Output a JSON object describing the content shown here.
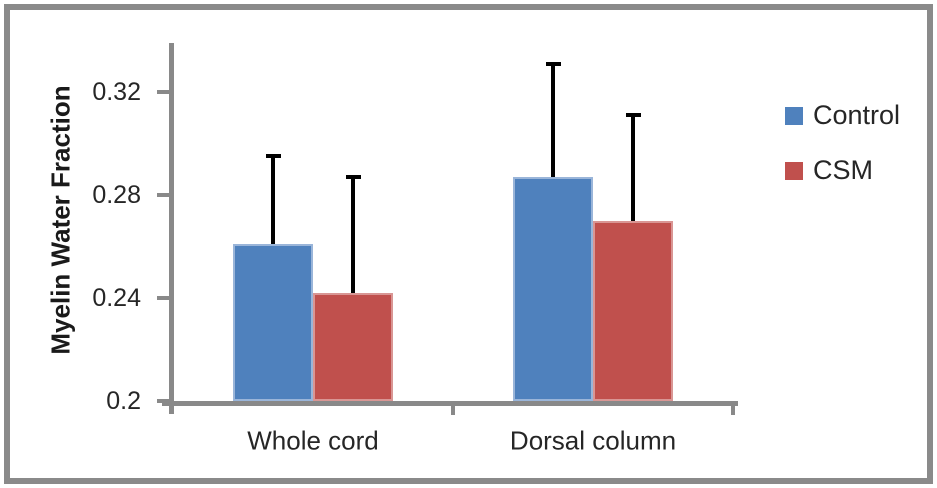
{
  "chart_data": {
    "type": "bar",
    "title": "",
    "xlabel": "",
    "ylabel": "Myelin Water Fraction",
    "categories": [
      "Whole cord",
      "Dorsal column"
    ],
    "series": [
      {
        "name": "Control",
        "color": "#4f81bd",
        "edge_color": "#9ab5d9",
        "values": [
          0.261,
          0.287
        ],
        "error_up": [
          0.034,
          0.044
        ]
      },
      {
        "name": "CSM",
        "color": "#c0504d",
        "edge_color": "#d99694",
        "values": [
          0.242,
          0.27
        ],
        "error_up": [
          0.045,
          0.041
        ]
      }
    ],
    "ylim": [
      0.2,
      0.34
    ],
    "yticks": [
      {
        "value": 0.32,
        "label": "0.32"
      },
      {
        "value": 0.28,
        "label": "0.28"
      },
      {
        "value": 0.24,
        "label": "0.24"
      },
      {
        "value": 0.2,
        "label": "0.2"
      }
    ],
    "error_bars": "upper only, black caps",
    "grid": false,
    "legend_position": "right",
    "axis_color": "#898989",
    "frame_color": "#8a8a8a",
    "text_color": "#262626"
  }
}
